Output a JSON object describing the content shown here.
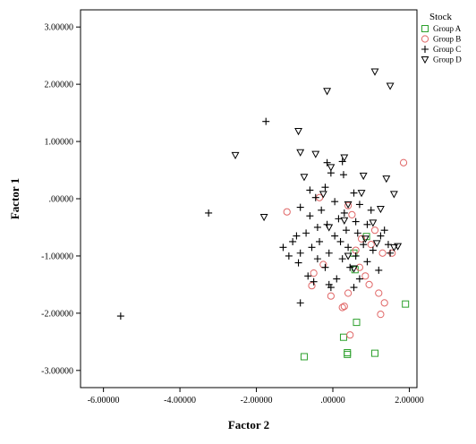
{
  "chart_data": {
    "type": "scatter",
    "title": "",
    "xlabel": "Factor  2",
    "ylabel": "Factor 1",
    "xlim": [
      -6.6,
      2.2
    ],
    "ylim": [
      -3.3,
      3.3
    ],
    "x_ticks": [
      -6.0,
      -4.0,
      -2.0,
      0.0,
      2.0
    ],
    "x_tick_labels": [
      "-6.00000",
      "-4.00000",
      "-2.00000",
      ".00000",
      "2.00000"
    ],
    "y_ticks": [
      3.0,
      2.0,
      1.0,
      0.0,
      -1.0,
      -2.0,
      -3.0
    ],
    "y_tick_labels": [
      "3.00000",
      "2.00000",
      "1.00000",
      ".00000",
      "-1.00000",
      "-2.00000",
      "-3.00000"
    ],
    "grid": false,
    "legend_title": "Stock",
    "legend_position": "top-right outside",
    "series": [
      {
        "name": "Group A",
        "marker": "square",
        "color": "#2ca02c",
        "points": [
          [
            -0.75,
            -2.76
          ],
          [
            0.28,
            -2.42
          ],
          [
            0.38,
            -2.72
          ],
          [
            0.38,
            -2.69
          ],
          [
            1.1,
            -2.7
          ],
          [
            0.62,
            -2.16
          ],
          [
            1.9,
            -1.84
          ],
          [
            0.58,
            -1.24
          ],
          [
            0.88,
            -0.66
          ],
          [
            0.55,
            -0.95
          ]
        ]
      },
      {
        "name": "Group B",
        "marker": "circle",
        "color": "#e06666",
        "points": [
          [
            1.85,
            0.63
          ],
          [
            -1.2,
            -0.23
          ],
          [
            0.4,
            -0.12
          ],
          [
            0.5,
            -0.28
          ],
          [
            1.1,
            -0.55
          ],
          [
            0.75,
            -0.7
          ],
          [
            1.0,
            -0.8
          ],
          [
            1.3,
            -0.95
          ],
          [
            1.55,
            -0.95
          ],
          [
            0.6,
            -0.9
          ],
          [
            -0.25,
            -1.15
          ],
          [
            0.7,
            -1.2
          ],
          [
            -0.5,
            -1.3
          ],
          [
            0.85,
            -1.35
          ],
          [
            0.95,
            -1.5
          ],
          [
            -0.55,
            -1.52
          ],
          [
            0.4,
            -1.65
          ],
          [
            1.2,
            -1.65
          ],
          [
            -0.05,
            -1.7
          ],
          [
            1.35,
            -1.82
          ],
          [
            0.25,
            -1.9
          ],
          [
            0.3,
            -1.88
          ],
          [
            1.25,
            -2.02
          ],
          [
            0.45,
            -2.38
          ],
          [
            -0.35,
            0.02
          ]
        ]
      },
      {
        "name": "Group C",
        "marker": "plus",
        "color": "#000000",
        "points": [
          [
            -5.55,
            -2.05
          ],
          [
            -3.25,
            -0.25
          ],
          [
            -1.75,
            1.35
          ],
          [
            -0.15,
            0.63
          ],
          [
            0.25,
            0.65
          ],
          [
            -0.05,
            0.45
          ],
          [
            0.28,
            0.42
          ],
          [
            -0.6,
            0.15
          ],
          [
            -0.2,
            0.2
          ],
          [
            0.55,
            0.1
          ],
          [
            -0.45,
            0.02
          ],
          [
            0.05,
            -0.05
          ],
          [
            0.7,
            -0.1
          ],
          [
            -0.85,
            -0.15
          ],
          [
            -0.3,
            -0.2
          ],
          [
            0.3,
            -0.25
          ],
          [
            1.0,
            -0.2
          ],
          [
            -0.6,
            -0.3
          ],
          [
            0.15,
            -0.35
          ],
          [
            0.6,
            -0.4
          ],
          [
            -0.15,
            -0.45
          ],
          [
            0.9,
            -0.45
          ],
          [
            -0.4,
            -0.5
          ],
          [
            0.35,
            -0.55
          ],
          [
            1.35,
            -0.55
          ],
          [
            -0.7,
            -0.6
          ],
          [
            0.05,
            -0.65
          ],
          [
            0.65,
            -0.6
          ],
          [
            1.25,
            -0.65
          ],
          [
            -1.05,
            -0.75
          ],
          [
            -0.35,
            -0.75
          ],
          [
            0.2,
            -0.75
          ],
          [
            0.8,
            -0.8
          ],
          [
            1.45,
            -0.8
          ],
          [
            -1.3,
            -0.85
          ],
          [
            -0.55,
            -0.85
          ],
          [
            0.4,
            -0.85
          ],
          [
            1.05,
            -0.9
          ],
          [
            -0.85,
            -0.95
          ],
          [
            -0.1,
            -0.95
          ],
          [
            0.6,
            -1.0
          ],
          [
            1.5,
            -0.95
          ],
          [
            -1.15,
            -1.0
          ],
          [
            -0.4,
            -1.05
          ],
          [
            0.25,
            -1.05
          ],
          [
            0.9,
            -1.1
          ],
          [
            -0.9,
            -1.12
          ],
          [
            -0.2,
            -1.2
          ],
          [
            0.45,
            -1.2
          ],
          [
            1.2,
            -1.25
          ],
          [
            -0.65,
            -1.35
          ],
          [
            0.1,
            -1.4
          ],
          [
            0.7,
            -1.4
          ],
          [
            -0.5,
            -1.45
          ],
          [
            -0.1,
            -1.5
          ],
          [
            -0.05,
            -1.55
          ],
          [
            0.55,
            -1.55
          ],
          [
            -0.85,
            -1.82
          ],
          [
            -0.95,
            -0.65
          ]
        ]
      },
      {
        "name": "Group D",
        "marker": "triangle-down",
        "color": "#000000",
        "points": [
          [
            1.1,
            2.22
          ],
          [
            1.5,
            1.97
          ],
          [
            -0.15,
            1.88
          ],
          [
            -2.55,
            0.76
          ],
          [
            -0.9,
            1.18
          ],
          [
            -0.85,
            0.81
          ],
          [
            -0.45,
            0.78
          ],
          [
            0.3,
            0.72
          ],
          [
            -0.05,
            0.55
          ],
          [
            -0.75,
            0.38
          ],
          [
            0.8,
            0.4
          ],
          [
            1.4,
            0.35
          ],
          [
            -0.25,
            0.08
          ],
          [
            0.75,
            0.1
          ],
          [
            1.6,
            0.08
          ],
          [
            0.4,
            -0.1
          ],
          [
            1.25,
            -0.18
          ],
          [
            -1.8,
            -0.32
          ],
          [
            0.3,
            -0.38
          ],
          [
            1.05,
            -0.42
          ],
          [
            -0.1,
            -0.5
          ],
          [
            0.85,
            -0.7
          ],
          [
            1.15,
            -0.78
          ],
          [
            1.6,
            -0.85
          ],
          [
            1.7,
            -0.83
          ],
          [
            0.55,
            -1.22
          ],
          [
            0.4,
            -1.0
          ]
        ]
      }
    ]
  }
}
